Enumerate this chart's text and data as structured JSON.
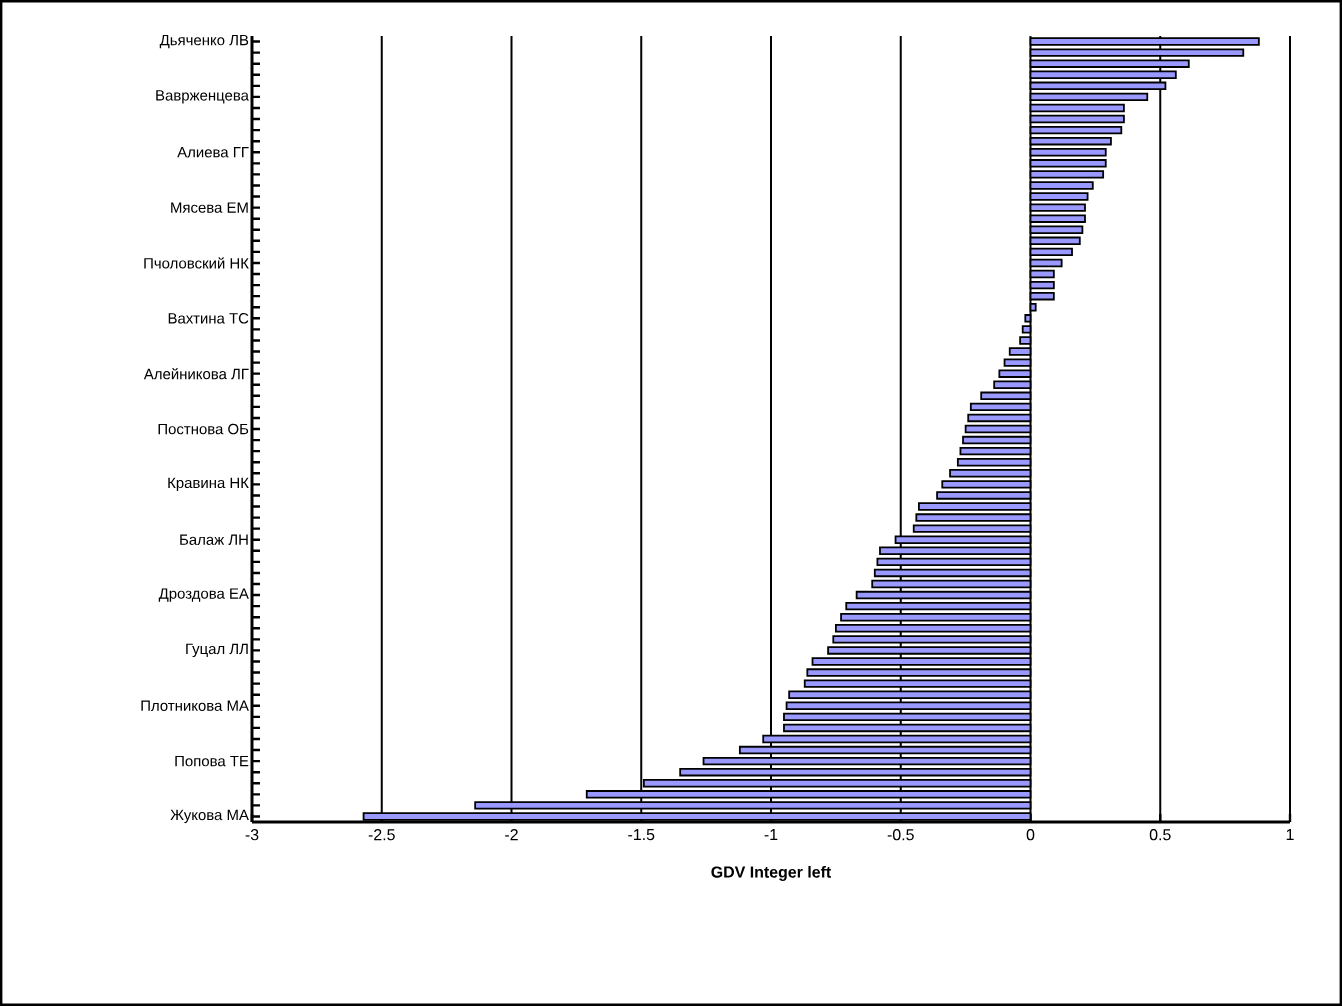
{
  "chart_data": {
    "type": "bar",
    "orientation": "horizontal",
    "xlabel": "GDV Integer left",
    "categories": [
      "Дьяченко ЛВ",
      null,
      null,
      null,
      null,
      "Ваврженцева",
      null,
      null,
      null,
      null,
      "Алиева ГГ",
      null,
      null,
      null,
      null,
      "Мясева ЕМ",
      null,
      null,
      null,
      null,
      "Пчоловский НК",
      null,
      null,
      null,
      null,
      "Вахтина ТС",
      null,
      null,
      null,
      null,
      "Алейникова ЛГ",
      null,
      null,
      null,
      null,
      "Постнова ОБ",
      null,
      null,
      null,
      null,
      "Кравина НК",
      null,
      null,
      null,
      null,
      "Балаж ЛН",
      null,
      null,
      null,
      null,
      "Дроздова ЕА",
      null,
      null,
      null,
      null,
      "Гуцал ЛЛ",
      null,
      null,
      null,
      null,
      "Плотникова МА",
      null,
      null,
      null,
      null,
      "Попова ТЕ",
      null,
      null,
      null,
      null,
      "Жукова МА"
    ],
    "values": [
      0.88,
      0.82,
      0.61,
      0.56,
      0.52,
      0.45,
      0.36,
      0.36,
      0.35,
      0.31,
      0.29,
      0.29,
      0.28,
      0.24,
      0.22,
      0.21,
      0.21,
      0.2,
      0.19,
      0.16,
      0.12,
      0.09,
      0.09,
      0.09,
      0.02,
      -0.02,
      -0.03,
      -0.04,
      -0.08,
      -0.1,
      -0.12,
      -0.14,
      -0.19,
      -0.23,
      -0.24,
      -0.25,
      -0.26,
      -0.27,
      -0.28,
      -0.31,
      -0.34,
      -0.36,
      -0.43,
      -0.44,
      -0.45,
      -0.52,
      -0.58,
      -0.59,
      -0.6,
      -0.61,
      -0.67,
      -0.71,
      -0.73,
      -0.75,
      -0.76,
      -0.78,
      -0.84,
      -0.86,
      -0.87,
      -0.93,
      -0.94,
      -0.95,
      -0.95,
      -1.03,
      -1.12,
      -1.26,
      -1.35,
      -1.49,
      -1.71,
      -2.14,
      -2.57
    ],
    "color": "#9999ff",
    "xlim": [
      -3,
      1
    ],
    "xticks": [
      -3,
      -2.5,
      -2,
      -1.5,
      -1,
      -0.5,
      0,
      0.5,
      1
    ],
    "grid": "x"
  }
}
